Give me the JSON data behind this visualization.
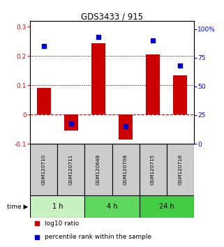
{
  "title": "GDS3433 / 915",
  "samples": [
    "GSM120710",
    "GSM120711",
    "GSM120648",
    "GSM120708",
    "GSM120715",
    "GSM120716"
  ],
  "log10_ratio": [
    0.09,
    -0.055,
    0.245,
    -0.085,
    0.205,
    0.135
  ],
  "percentile_rank": [
    85,
    18,
    93,
    15,
    90,
    68
  ],
  "time_groups": [
    {
      "label": "1 h",
      "start": 0,
      "end": 2,
      "color": "#c8f0c0"
    },
    {
      "label": "4 h",
      "start": 2,
      "end": 4,
      "color": "#60d860"
    },
    {
      "label": "24 h",
      "start": 4,
      "end": 6,
      "color": "#44cc44"
    }
  ],
  "bar_color": "#cc0000",
  "square_color": "#0000cc",
  "left_ylim": [
    -0.1,
    0.32
  ],
  "right_ylim": [
    0,
    107
  ],
  "left_yticks": [
    -0.1,
    0.0,
    0.1,
    0.2,
    0.3
  ],
  "left_ytick_labels": [
    "-0.1",
    "0",
    "0.1",
    "0.2",
    "0.3"
  ],
  "right_yticks": [
    0,
    25,
    50,
    75,
    100
  ],
  "right_ytick_labels": [
    "0",
    "25",
    "50",
    "75",
    "100%"
  ],
  "dotted_lines": [
    0.1,
    0.2
  ],
  "bar_width": 0.5,
  "square_size": 18,
  "cell_color": "#cccccc",
  "cell_border": "#000000"
}
